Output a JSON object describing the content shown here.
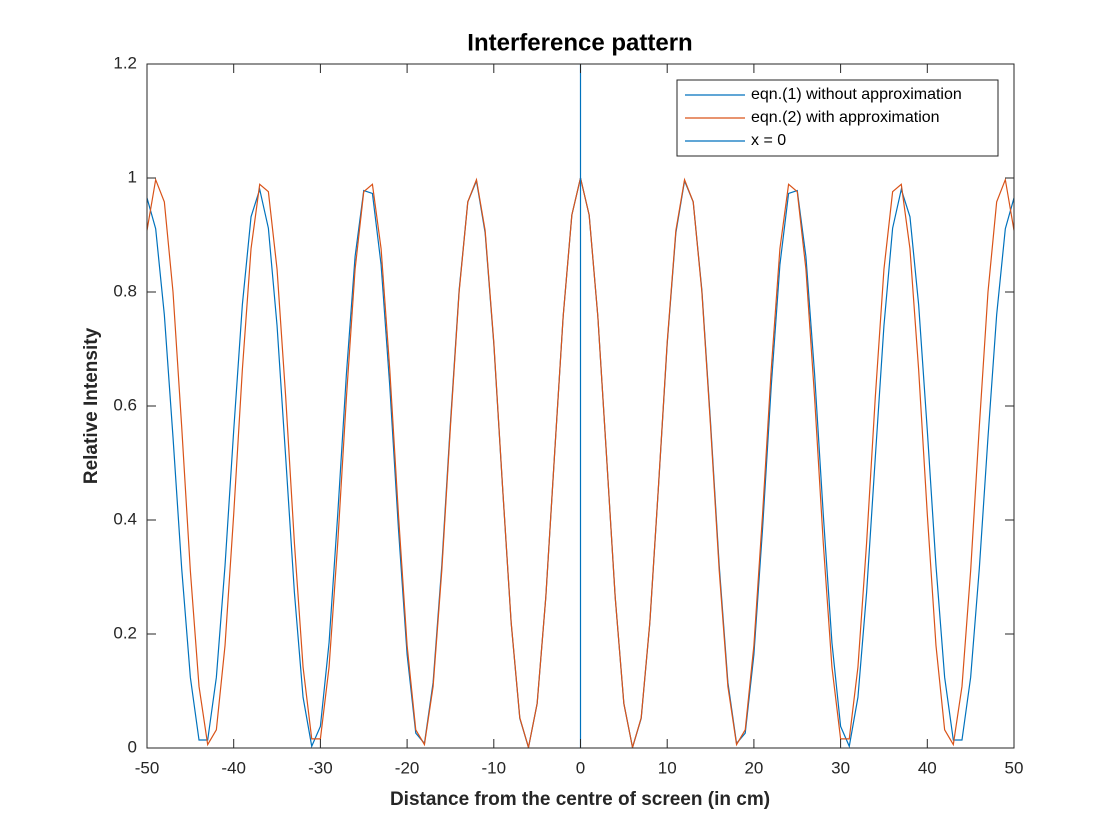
{
  "chart_data": {
    "type": "line",
    "title": "Interference pattern",
    "xlabel": "Distance from the centre of screen (in cm)",
    "ylabel": "Relative Intensity",
    "xlim": [
      -50,
      50
    ],
    "ylim": [
      0,
      1.2
    ],
    "xticks": [
      -50,
      -40,
      -30,
      -20,
      -10,
      0,
      10,
      20,
      30,
      40,
      50
    ],
    "yticks": [
      0,
      0.2,
      0.4,
      0.6,
      0.8,
      1,
      1.2
    ],
    "grid": false,
    "legend": "northeast",
    "x": [
      -50,
      -49,
      -48,
      -47,
      -46,
      -45,
      -44,
      -43,
      -42,
      -41,
      -40,
      -39,
      -38,
      -37,
      -36,
      -35,
      -34,
      -33,
      -32,
      -31,
      -30,
      -29,
      -28,
      -27,
      -26,
      -25,
      -24,
      -23,
      -22,
      -21,
      -20,
      -19,
      -18,
      -17,
      -16,
      -15,
      -14,
      -13,
      -12,
      -11,
      -10,
      -9,
      -8,
      -7,
      -6,
      -5,
      -4,
      -3,
      -2,
      -1,
      0,
      1,
      2,
      3,
      4,
      5,
      6,
      7,
      8,
      9,
      10,
      11,
      12,
      13,
      14,
      15,
      16,
      17,
      18,
      19,
      20,
      21,
      22,
      23,
      24,
      25,
      26,
      27,
      28,
      29,
      30,
      31,
      32,
      33,
      34,
      35,
      36,
      37,
      38,
      39,
      40,
      41,
      42,
      43,
      44,
      45,
      46,
      47,
      48,
      49,
      50
    ],
    "series": [
      {
        "name": "eqn.(1) without approximation",
        "color": "#0072bd",
        "values": [
          0.965,
          0.911,
          0.76,
          0.545,
          0.315,
          0.124,
          0.014,
          0.014,
          0.124,
          0.32,
          0.557,
          0.778,
          0.932,
          0.98,
          0.912,
          0.741,
          0.509,
          0.273,
          0.089,
          0.003,
          0.038,
          0.185,
          0.41,
          0.656,
          0.862,
          0.978,
          0.973,
          0.848,
          0.635,
          0.385,
          0.164,
          0.026,
          0.008,
          0.115,
          0.32,
          0.571,
          0.803,
          0.958,
          0.995,
          0.904,
          0.709,
          0.46,
          0.22,
          0.052,
          0.001,
          0.078,
          0.265,
          0.513,
          0.757,
          0.935,
          1,
          0.935,
          0.757,
          0.513,
          0.265,
          0.078,
          0.001,
          0.052,
          0.22,
          0.46,
          0.709,
          0.904,
          0.995,
          0.958,
          0.803,
          0.571,
          0.32,
          0.115,
          0.008,
          0.026,
          0.164,
          0.385,
          0.635,
          0.848,
          0.973,
          0.978,
          0.862,
          0.656,
          0.41,
          0.185,
          0.038,
          0.003,
          0.089,
          0.273,
          0.509,
          0.741,
          0.912,
          0.98,
          0.932,
          0.778,
          0.557,
          0.32,
          0.124,
          0.014,
          0.014,
          0.124,
          0.315,
          0.545,
          0.76,
          0.911,
          0.965
        ]
      },
      {
        "name": "eqn.(2) with approximation",
        "color": "#d95319",
        "values": [
          0.908,
          0.997,
          0.958,
          0.8,
          0.564,
          0.311,
          0.108,
          0.006,
          0.032,
          0.18,
          0.41,
          0.664,
          0.876,
          0.989,
          0.976,
          0.84,
          0.615,
          0.36,
          0.142,
          0.016,
          0.016,
          0.142,
          0.36,
          0.615,
          0.84,
          0.976,
          0.989,
          0.876,
          0.664,
          0.41,
          0.18,
          0.032,
          0.006,
          0.108,
          0.311,
          0.564,
          0.8,
          0.958,
          0.997,
          0.908,
          0.712,
          0.461,
          0.221,
          0.053,
          0.001,
          0.078,
          0.265,
          0.513,
          0.757,
          0.935,
          1,
          0.935,
          0.757,
          0.513,
          0.265,
          0.078,
          0.001,
          0.053,
          0.221,
          0.461,
          0.712,
          0.908,
          0.997,
          0.958,
          0.8,
          0.564,
          0.311,
          0.108,
          0.006,
          0.032,
          0.18,
          0.41,
          0.664,
          0.876,
          0.989,
          0.976,
          0.84,
          0.615,
          0.36,
          0.142,
          0.016,
          0.016,
          0.142,
          0.36,
          0.615,
          0.84,
          0.976,
          0.989,
          0.876,
          0.664,
          0.41,
          0.18,
          0.032,
          0.006,
          0.108,
          0.311,
          0.564,
          0.8,
          0.958,
          0.997,
          0.908
        ]
      },
      {
        "name": "x = 0",
        "color": "#0072bd",
        "x": [
          0,
          0
        ],
        "values": [
          0,
          1.2
        ]
      }
    ]
  }
}
